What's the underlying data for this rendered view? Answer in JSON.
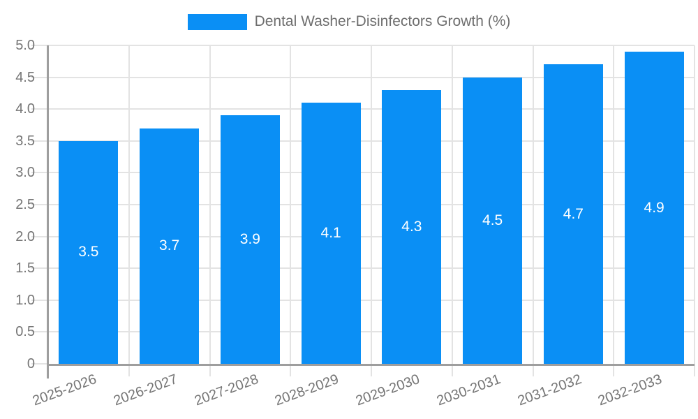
{
  "legend": {
    "label": "Dental Washer-Disinfectors Growth (%)"
  },
  "colors": {
    "bar": "#0a8ff5",
    "grid": "#e3e3e3",
    "axis": "#9e9e9e",
    "axis_label": "#757575",
    "legend_text": "#6e6e6e",
    "value_label": "#ffffff",
    "background": "#ffffff"
  },
  "chart_data": {
    "type": "bar",
    "title": "Dental Washer-Disinfectors Growth (%)",
    "categories": [
      "2025-2026",
      "2026-2027",
      "2027-2028",
      "2028-2029",
      "2029-2030",
      "2030-2031",
      "2031-2032",
      "2032-2033"
    ],
    "values": [
      3.5,
      3.7,
      3.9,
      4.1,
      4.3,
      4.5,
      4.7,
      4.9
    ],
    "bar_labels": [
      "3.5",
      "3.7",
      "3.9",
      "4.1",
      "4.3",
      "4.5",
      "4.7",
      "4.9"
    ],
    "xlabel": "",
    "ylabel": "",
    "ylim": [
      0,
      5
    ],
    "ytick_labels": [
      "0",
      "0.5",
      "1.0",
      "1.5",
      "2.0",
      "2.5",
      "3.0",
      "3.5",
      "4.0",
      "4.5",
      "5.0"
    ],
    "ytick_values": [
      0,
      0.5,
      1.0,
      1.5,
      2.0,
      2.5,
      3.0,
      3.5,
      4.0,
      4.5,
      5.0
    ],
    "grid": true,
    "legend_position": "top",
    "x_label_rotation_deg": -20,
    "value_labels_position": "inside-center"
  }
}
